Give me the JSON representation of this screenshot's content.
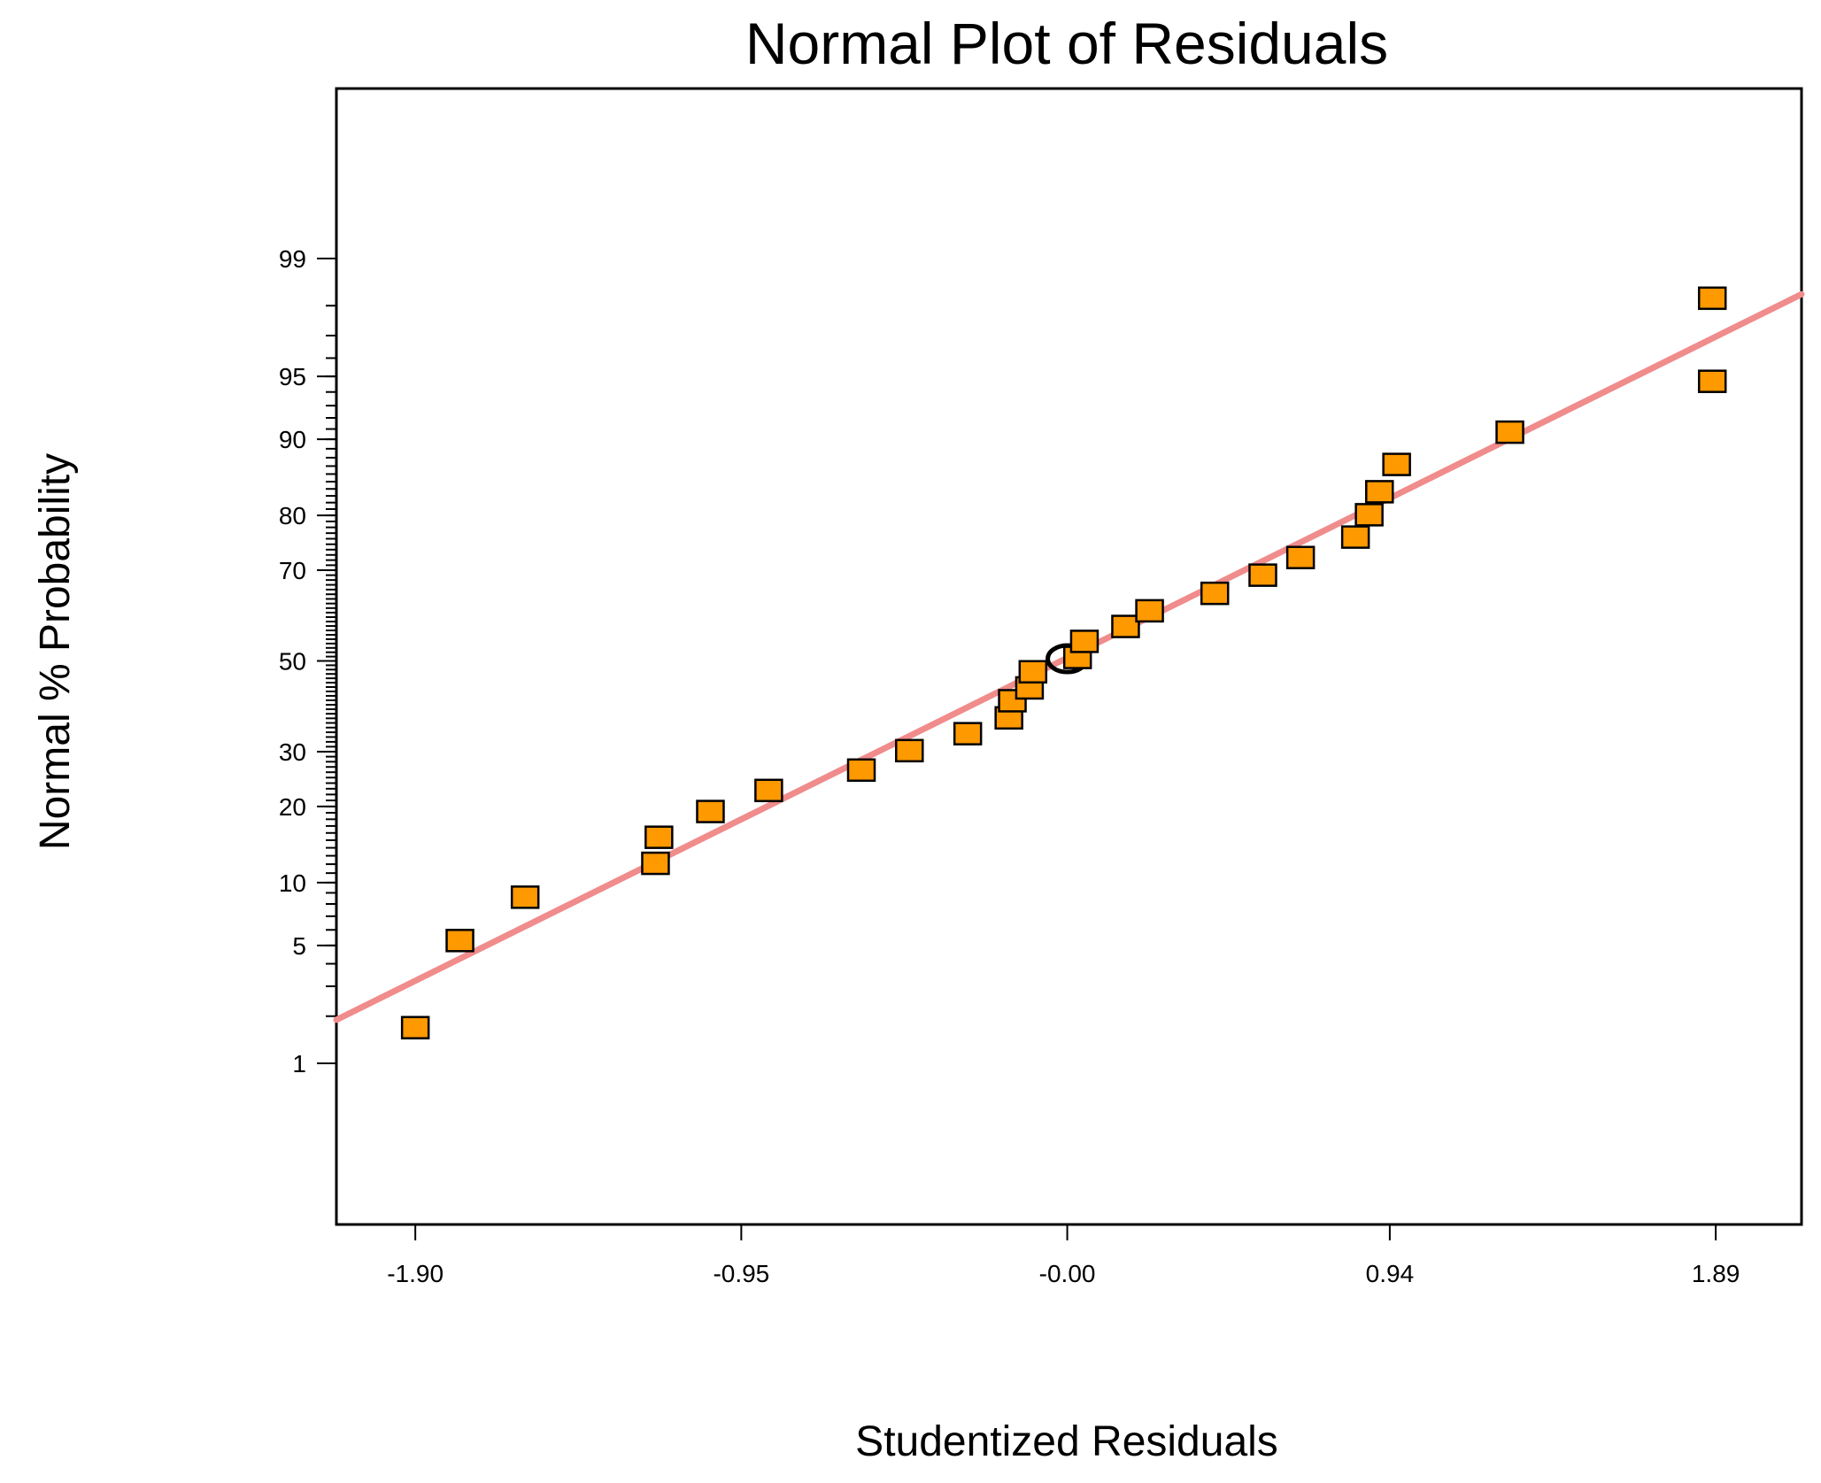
{
  "chart_data": {
    "type": "scatter",
    "title": "Normal Plot of Residuals",
    "xlabel": "Studentized Residuals",
    "ylabel": "Normal % Probability",
    "xlim": [
      -2.13,
      2.14
    ],
    "x_ticks": [
      {
        "value": -1.9,
        "label": "-1.90"
      },
      {
        "value": -0.95,
        "label": "-0.95"
      },
      {
        "value": 0.0,
        "label": "-0.00"
      },
      {
        "value": 0.94,
        "label": "0.94"
      },
      {
        "value": 1.89,
        "label": "1.89"
      }
    ],
    "y_ticks": [
      {
        "value": 1,
        "label": "1"
      },
      {
        "value": 5,
        "label": "5"
      },
      {
        "value": 10,
        "label": "10"
      },
      {
        "value": 20,
        "label": "20"
      },
      {
        "value": 30,
        "label": "30"
      },
      {
        "value": 50,
        "label": "50"
      },
      {
        "value": 70,
        "label": "70"
      },
      {
        "value": 80,
        "label": "80"
      },
      {
        "value": 90,
        "label": "90"
      },
      {
        "value": 95,
        "label": "95"
      },
      {
        "value": 99,
        "label": "99"
      }
    ],
    "points": [
      {
        "x": -1.9,
        "y": 1.7
      },
      {
        "x": -1.77,
        "y": 5.3
      },
      {
        "x": -1.58,
        "y": 8.6
      },
      {
        "x": -1.2,
        "y": 12.1
      },
      {
        "x": -1.19,
        "y": 15.4
      },
      {
        "x": -1.04,
        "y": 19.2
      },
      {
        "x": -0.87,
        "y": 22.7
      },
      {
        "x": -0.6,
        "y": 26.4
      },
      {
        "x": -0.46,
        "y": 30.2
      },
      {
        "x": -0.29,
        "y": 33.7
      },
      {
        "x": -0.17,
        "y": 37.1
      },
      {
        "x": -0.16,
        "y": 40.9
      },
      {
        "x": -0.11,
        "y": 43.8
      },
      {
        "x": -0.1,
        "y": 47.5
      },
      {
        "x": 0.03,
        "y": 50.8
      },
      {
        "x": 0.05,
        "y": 54.5
      },
      {
        "x": 0.17,
        "y": 57.9
      },
      {
        "x": 0.24,
        "y": 61.4
      },
      {
        "x": 0.43,
        "y": 65.2
      },
      {
        "x": 0.57,
        "y": 69.0
      },
      {
        "x": 0.68,
        "y": 72.5
      },
      {
        "x": 0.84,
        "y": 76.3
      },
      {
        "x": 0.88,
        "y": 80.1
      },
      {
        "x": 0.91,
        "y": 83.6
      },
      {
        "x": 0.96,
        "y": 87.2
      },
      {
        "x": 1.29,
        "y": 90.7
      },
      {
        "x": 1.88,
        "y": 94.7
      },
      {
        "x": 1.88,
        "y": 98.2
      }
    ],
    "fit_line": {
      "x": [
        -2.13,
        2.14
      ],
      "y": [
        1.9,
        98.3
      ]
    },
    "center_marker": {
      "x": 0.0,
      "y": 50.5
    },
    "colors": {
      "marker_fill": "#ff9900",
      "marker_stroke": "#000000",
      "line": "#f08c8c"
    }
  }
}
